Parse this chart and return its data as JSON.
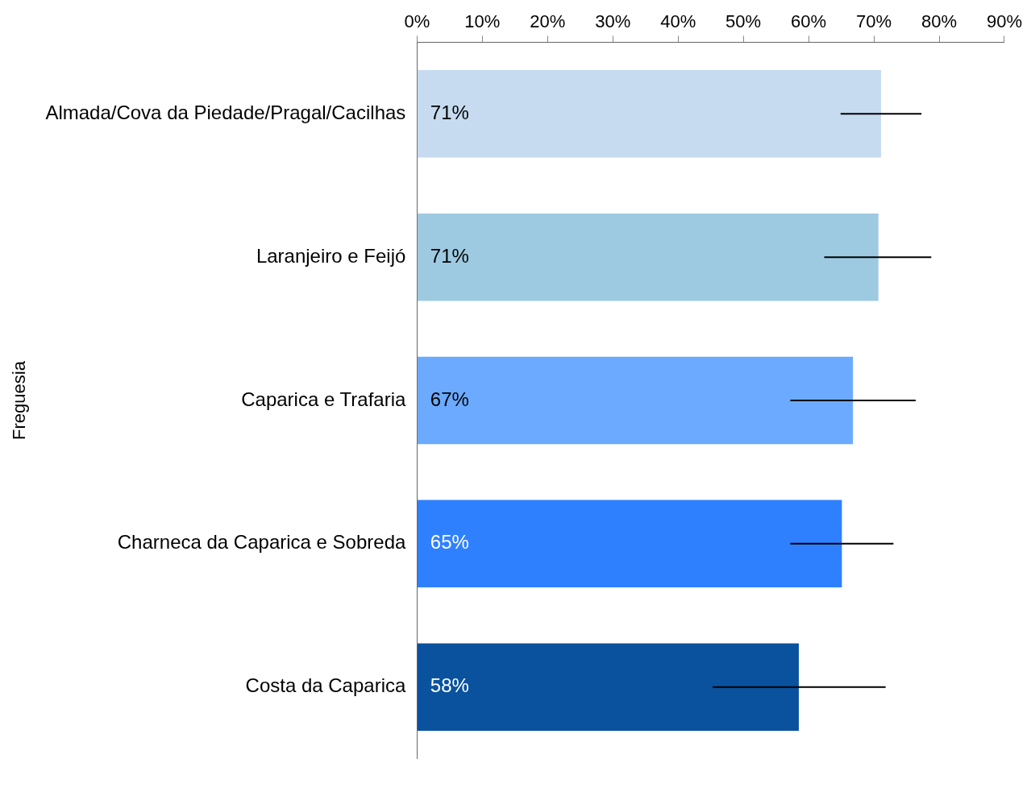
{
  "chart_data": {
    "type": "bar",
    "orientation": "horizontal",
    "ylabel": "Freguesia",
    "categories": [
      "Almada/Cova da Piedade/Pragal/Cacilhas",
      "Laranjeiro e Feijó",
      "Caparica e Trafaria",
      "Charneca da Caparica e Sobreda",
      "Costa da Caparica"
    ],
    "values": [
      71.1,
      70.7,
      66.8,
      65.1,
      58.5
    ],
    "colors": [
      "#c6dbef",
      "#9ecae1",
      "#6baaff",
      "#2f80ff",
      "#0a529e"
    ],
    "errors": [
      [
        64.9,
        77.3
      ],
      [
        62.4,
        78.8
      ],
      [
        57.2,
        76.4
      ],
      [
        57.2,
        73.0
      ],
      [
        45.3,
        71.8
      ]
    ],
    "value_labels": [
      "71%",
      "71%",
      "67%",
      "65%",
      "58%"
    ],
    "xlim": [
      0,
      90
    ],
    "xticks": [
      {
        "value": 0,
        "label": "0%"
      },
      {
        "value": 10,
        "label": "10%"
      },
      {
        "value": 20,
        "label": "20%"
      },
      {
        "value": 30,
        "label": "30%"
      },
      {
        "value": 40,
        "label": "40%"
      },
      {
        "value": 50,
        "label": "50%"
      },
      {
        "value": 60,
        "label": "60%"
      },
      {
        "value": 70,
        "label": "70%"
      },
      {
        "value": 80,
        "label": "80%"
      },
      {
        "value": 90,
        "label": "90%"
      }
    ],
    "grid": false,
    "legend": false
  }
}
